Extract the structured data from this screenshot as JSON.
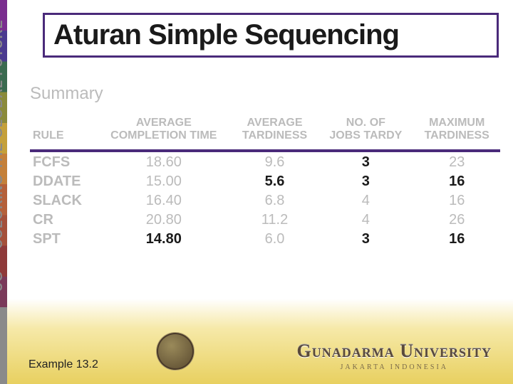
{
  "sidebar": {
    "vertical_text": "UG — COLORING THE GLOBAL FUTURE",
    "stripe_colors": [
      "#7a2d8f",
      "#4a3a8f",
      "#3a6a4f",
      "#8a8a3a",
      "#c4a03a",
      "#c4803a",
      "#b4603a",
      "#a4503a",
      "#8f3a3a",
      "#7a3a5a",
      "#8a8a8a"
    ]
  },
  "title": "Aturan Simple Sequencing",
  "subtitle": "Summary",
  "table": {
    "type": "table",
    "header_rule_color": "#4a2a7a",
    "muted_color": "#bbbbbb",
    "highlight_color": "#1a1a1a",
    "columns": [
      {
        "label_line1": "",
        "label_line2": "RULE",
        "align": "left"
      },
      {
        "label_line1": "AVERAGE",
        "label_line2": "COMPLETION TIME",
        "align": "center"
      },
      {
        "label_line1": "AVERAGE",
        "label_line2": "TARDINESS",
        "align": "center"
      },
      {
        "label_line1": "NO. OF",
        "label_line2": "JOBS TARDY",
        "align": "center"
      },
      {
        "label_line1": "MAXIMUM",
        "label_line2": "TARDINESS",
        "align": "center"
      }
    ],
    "rows": [
      {
        "rule": "FCFS",
        "avg_completion": "18.60",
        "avg_tardiness": "9.6",
        "jobs_tardy": "3",
        "max_tardiness": "23",
        "hl": {
          "avg_completion": false,
          "avg_tardiness": false,
          "jobs_tardy": true,
          "max_tardiness": false
        }
      },
      {
        "rule": "DDATE",
        "avg_completion": "15.00",
        "avg_tardiness": "5.6",
        "jobs_tardy": "3",
        "max_tardiness": "16",
        "hl": {
          "avg_completion": false,
          "avg_tardiness": true,
          "jobs_tardy": true,
          "max_tardiness": true
        }
      },
      {
        "rule": "SLACK",
        "avg_completion": "16.40",
        "avg_tardiness": "6.8",
        "jobs_tardy": "4",
        "max_tardiness": "16",
        "hl": {
          "avg_completion": false,
          "avg_tardiness": false,
          "jobs_tardy": false,
          "max_tardiness": false
        }
      },
      {
        "rule": "CR",
        "avg_completion": "20.80",
        "avg_tardiness": "11.2",
        "jobs_tardy": "4",
        "max_tardiness": "26",
        "hl": {
          "avg_completion": false,
          "avg_tardiness": false,
          "jobs_tardy": false,
          "max_tardiness": false
        }
      },
      {
        "rule": "SPT",
        "avg_completion": "14.80",
        "avg_tardiness": "6.0",
        "jobs_tardy": "3",
        "max_tardiness": "16",
        "hl": {
          "avg_completion": true,
          "avg_tardiness": false,
          "jobs_tardy": true,
          "max_tardiness": true
        }
      }
    ]
  },
  "footer": {
    "example_label": "Example 13.2",
    "university_name": "Gunadarma University",
    "university_sub": "JAKARTA INDONESIA",
    "banner_gradient": [
      "#ffffff",
      "#f6e9a8",
      "#e8d060"
    ]
  }
}
